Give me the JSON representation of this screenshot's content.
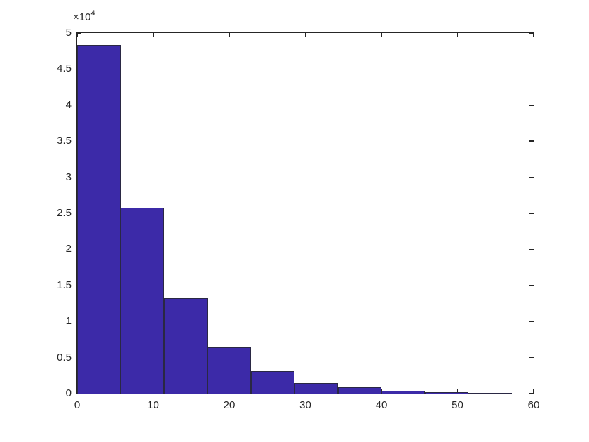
{
  "chart_data": {
    "type": "bar",
    "subtype": "histogram",
    "title": "",
    "xlabel": "",
    "ylabel": "",
    "bin_edges": [
      0,
      5.7143,
      11.4286,
      17.1429,
      22.8571,
      28.5714,
      34.2857,
      40.0,
      45.7143,
      51.4286,
      57.1429
    ],
    "counts": [
      48300,
      25800,
      13200,
      6400,
      3100,
      1460,
      870,
      420,
      180,
      70
    ],
    "xlim": [
      0,
      60
    ],
    "ylim": [
      0,
      50000
    ],
    "x_ticks": [
      0,
      10,
      20,
      30,
      40,
      50,
      60
    ],
    "x_tick_labels": [
      "0",
      "10",
      "20",
      "30",
      "40",
      "50",
      "60"
    ],
    "y_ticks": [
      0,
      5000,
      10000,
      15000,
      20000,
      25000,
      30000,
      35000,
      40000,
      45000,
      50000
    ],
    "y_tick_labels": [
      "0",
      "0.5",
      "1",
      "1.5",
      "2",
      "2.5",
      "3",
      "3.5",
      "4",
      "4.5",
      "5"
    ],
    "y_exponent": {
      "base": "×10",
      "power": "4"
    },
    "grid": false,
    "legend": null,
    "colors": {
      "bar_fill": "#3C2AA8",
      "bar_edge": "#2A2844",
      "axis": "#262626",
      "tick_label": "#262626",
      "background": "#ffffff"
    }
  }
}
